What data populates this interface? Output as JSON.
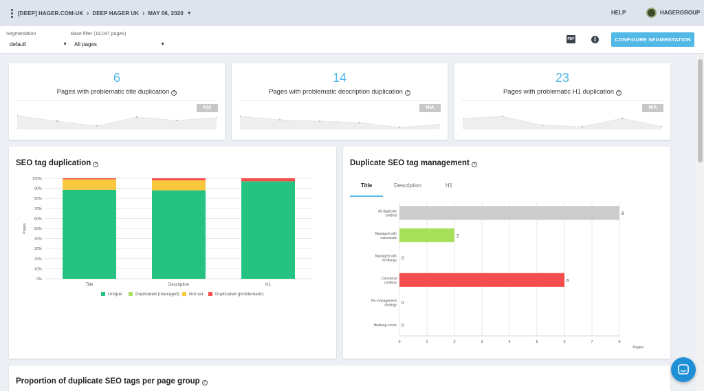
{
  "topbar": {
    "breadcrumb": [
      "[DEEP] HAGER.COM-UK",
      "DEEP HAGER UK",
      "MAY 06, 2020"
    ],
    "help": "HELP",
    "user": "HAGERGROUP"
  },
  "filters": {
    "segmentation_label": "Segmentation",
    "segmentation_value": "default",
    "base_label": "Base filter (19,047 pages)",
    "base_value": "All pages",
    "pdf_label": "PDF",
    "configure_label": "CONFIGURE SEGMENTATION"
  },
  "kpis": [
    {
      "value": "6",
      "label": "Pages with problematic title duplication",
      "badge": "N/A"
    },
    {
      "value": "14",
      "label": "Pages with problematic description duplication",
      "badge": "N/A"
    },
    {
      "value": "23",
      "label": "Pages with problematic H1 duplication",
      "badge": "N/A"
    }
  ],
  "seo_dup": {
    "title": "SEO tag duplication",
    "chart_data": {
      "type": "bar",
      "stacked": true,
      "categories": [
        "Title",
        "Description",
        "H1"
      ],
      "ylabel": "Pages",
      "ylim": [
        0,
        100
      ],
      "y_ticks": [
        "0%",
        "10%",
        "20%",
        "30%",
        "40%",
        "50%",
        "60%",
        "70%",
        "80%",
        "90%",
        "100%"
      ],
      "series": [
        {
          "name": "Unique",
          "color": "#26c281",
          "values": [
            88.5,
            88,
            97
          ]
        },
        {
          "name": "Duplicated (managed)",
          "color": "#a6e05a",
          "values": [
            0,
            0,
            0
          ]
        },
        {
          "name": "Not set",
          "color": "#fcc93e",
          "values": [
            10.5,
            10,
            0
          ]
        },
        {
          "name": "Duplicated (problematic)",
          "color": "#f44d4d",
          "values": [
            1,
            2,
            3
          ]
        }
      ],
      "legend": "bottom"
    }
  },
  "dup_mgmt": {
    "title": "Duplicate SEO tag management",
    "tabs": [
      "Title",
      "Description",
      "H1"
    ],
    "chart_data": {
      "type": "bar",
      "orientation": "horizontal",
      "categories": [
        "All duplicate content",
        "Managed with canonicals",
        "Managed with hreflangs",
        "Canonical conflicts",
        "No management strategy",
        "Hreflang errors"
      ],
      "values": [
        8,
        2,
        0,
        6,
        0,
        0
      ],
      "colors": [
        "#cccccc",
        "#a6e05a",
        "#a6e05a",
        "#f44d4d",
        "#cccccc",
        "#cccccc"
      ],
      "xlabel": "Pages",
      "xlim": [
        0,
        8
      ],
      "x_ticks": [
        "0",
        "1",
        "2",
        "3",
        "4",
        "5",
        "6",
        "7",
        "8"
      ]
    }
  },
  "proportion": {
    "title": "Proportion of duplicate SEO tags per page group"
  }
}
